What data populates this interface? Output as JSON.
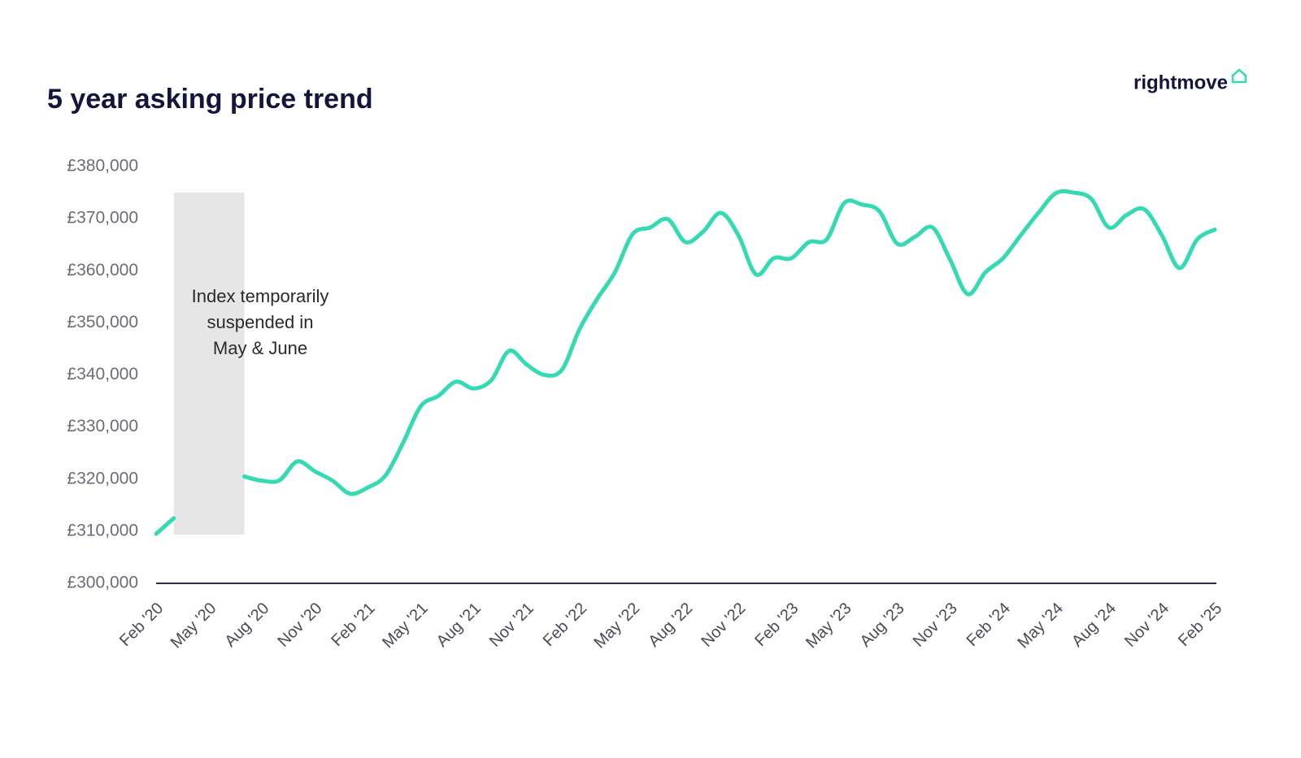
{
  "chart_data": {
    "type": "line",
    "title": "5 year asking price trend",
    "logo": "rightmove",
    "annotation": [
      "Index temporarily",
      "suspended in",
      "May & June"
    ],
    "color": "#34dbb2",
    "categories": [
      "Feb '20",
      null,
      null,
      "May '20",
      null,
      null,
      "Aug '20",
      null,
      null,
      "Nov '20",
      null,
      null,
      "Feb '21",
      null,
      null,
      "May '21",
      null,
      null,
      "Aug '21",
      null,
      null,
      "Nov '21",
      null,
      null,
      "Feb '22",
      null,
      null,
      "May '22",
      null,
      null,
      "Aug '22",
      null,
      null,
      "Nov '22",
      null,
      null,
      "Feb '23",
      null,
      null,
      "May '23",
      null,
      null,
      "Aug '23",
      null,
      null,
      "Nov '23",
      null,
      null,
      "Feb '24",
      null,
      null,
      "May '24",
      null,
      null,
      "Aug '24",
      null,
      null,
      "Nov '24",
      null,
      null,
      "Feb '25"
    ],
    "values": [
      309500,
      312500,
      null,
      null,
      null,
      320500,
      319700,
      319800,
      323400,
      321500,
      319700,
      317200,
      318400,
      320700,
      327000,
      334000,
      336000,
      338700,
      337400,
      339000,
      344600,
      342000,
      340000,
      341000,
      348800,
      354600,
      359700,
      367000,
      368300,
      369900,
      365500,
      367500,
      371100,
      366800,
      359300,
      362400,
      362400,
      365500,
      366000,
      373000,
      372700,
      371400,
      365200,
      366500,
      368300,
      362100,
      355500,
      359700,
      362400,
      366800,
      371100,
      374900,
      375000,
      373800,
      368300,
      370700,
      371800,
      366800,
      360500,
      366000,
      367900
    ],
    "ylim": [
      300000,
      380000
    ],
    "yticks": [
      {
        "value": 300000,
        "label": "£300,000"
      },
      {
        "value": 310000,
        "label": "£310,000"
      },
      {
        "value": 320000,
        "label": "£320,000"
      },
      {
        "value": 330000,
        "label": "£330,000"
      },
      {
        "value": 340000,
        "label": "£340,000"
      },
      {
        "value": 350000,
        "label": "£350,000"
      },
      {
        "value": 360000,
        "label": "£360,000"
      },
      {
        "value": 370000,
        "label": "£370,000"
      },
      {
        "value": 380000,
        "label": "£380,000"
      }
    ]
  }
}
